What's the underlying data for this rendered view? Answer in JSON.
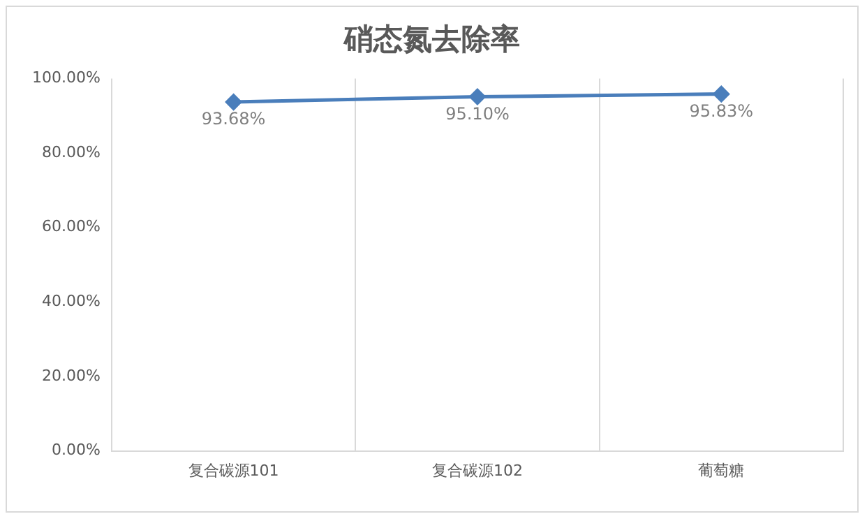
{
  "chart_data": {
    "type": "line",
    "title": "硝态氮去除率",
    "categories": [
      "复合碳源101",
      "复合碳源102",
      "葡萄糖"
    ],
    "series": [
      {
        "color": "#4a7ebb",
        "values": [
          93.68,
          95.1,
          95.83
        ],
        "value_labels": [
          "93.68%",
          "95.10%",
          "95.83%"
        ]
      }
    ],
    "ylim": [
      0,
      100
    ],
    "yticks": [
      {
        "value": 0,
        "label": "0.00%"
      },
      {
        "value": 20,
        "label": "20.00%"
      },
      {
        "value": 40,
        "label": "40.00%"
      },
      {
        "value": 60,
        "label": "60.00%"
      },
      {
        "value": 80,
        "label": "80.00%"
      },
      {
        "value": 100,
        "label": "100.00%"
      }
    ],
    "grid": "x",
    "marker": "diamond",
    "line_style": "solid",
    "legend": false
  }
}
